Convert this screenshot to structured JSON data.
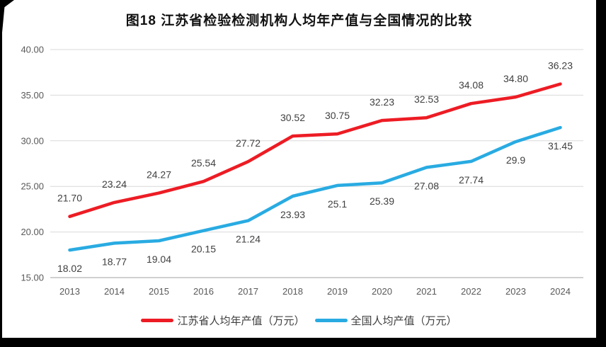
{
  "title": "图18  江苏省检验检测机构人均年产值与全国情况的比较",
  "colors": {
    "jiangsu_line": "#ed1c24",
    "national_line": "#29abe2",
    "gridline": "#d9d9d9",
    "axis_line": "#c0c0c0",
    "axis_label": "#595959",
    "data_label": "#404040",
    "title_text": "#111111",
    "page_bg": "#000000",
    "panel_bg": "#ffffff"
  },
  "chart_data": {
    "type": "line",
    "title": "图18  江苏省检验检测机构人均年产值与全国情况的比较",
    "categories": [
      "2013",
      "2014",
      "2015",
      "2016",
      "2017",
      "2018",
      "2019",
      "2020",
      "2021",
      "2022",
      "2023",
      "2024"
    ],
    "series": [
      {
        "name": "江苏省人均年产值（万元）",
        "color_key": "jiangsu_line",
        "label_side": "above",
        "values": [
          21.7,
          23.24,
          24.27,
          25.54,
          27.72,
          30.52,
          30.75,
          32.23,
          32.53,
          34.08,
          34.8,
          36.23
        ],
        "labels": [
          "21.70",
          "23.24",
          "24.27",
          "25.54",
          "27.72",
          "30.52",
          "30.75",
          "32.23",
          "32.53",
          "34.08",
          "34.80",
          "36.23"
        ]
      },
      {
        "name": "全国人均产值（万元）",
        "color_key": "national_line",
        "label_side": "below",
        "values": [
          18.02,
          18.77,
          19.04,
          20.15,
          21.24,
          23.93,
          25.1,
          25.39,
          27.08,
          27.74,
          29.9,
          31.45
        ],
        "labels": [
          "18.02",
          "18.77",
          "19.04",
          "20.15",
          "21.24",
          "23.93",
          "25.1",
          "25.39",
          "27.08",
          "27.74",
          "29.9",
          "31.45"
        ]
      }
    ],
    "ylim": [
      15,
      40
    ],
    "ytick_step": 5,
    "ytick_labels": [
      "15.00",
      "20.00",
      "25.00",
      "30.00",
      "35.00",
      "40.00"
    ],
    "xlabel": "",
    "ylabel": "",
    "grid": true,
    "legend_position": "bottom"
  },
  "legend": {
    "items": [
      {
        "label": "江苏省人均年产值（万元）",
        "color_key": "jiangsu_line"
      },
      {
        "label": "全国人均产值（万元）",
        "color_key": "national_line"
      }
    ]
  }
}
